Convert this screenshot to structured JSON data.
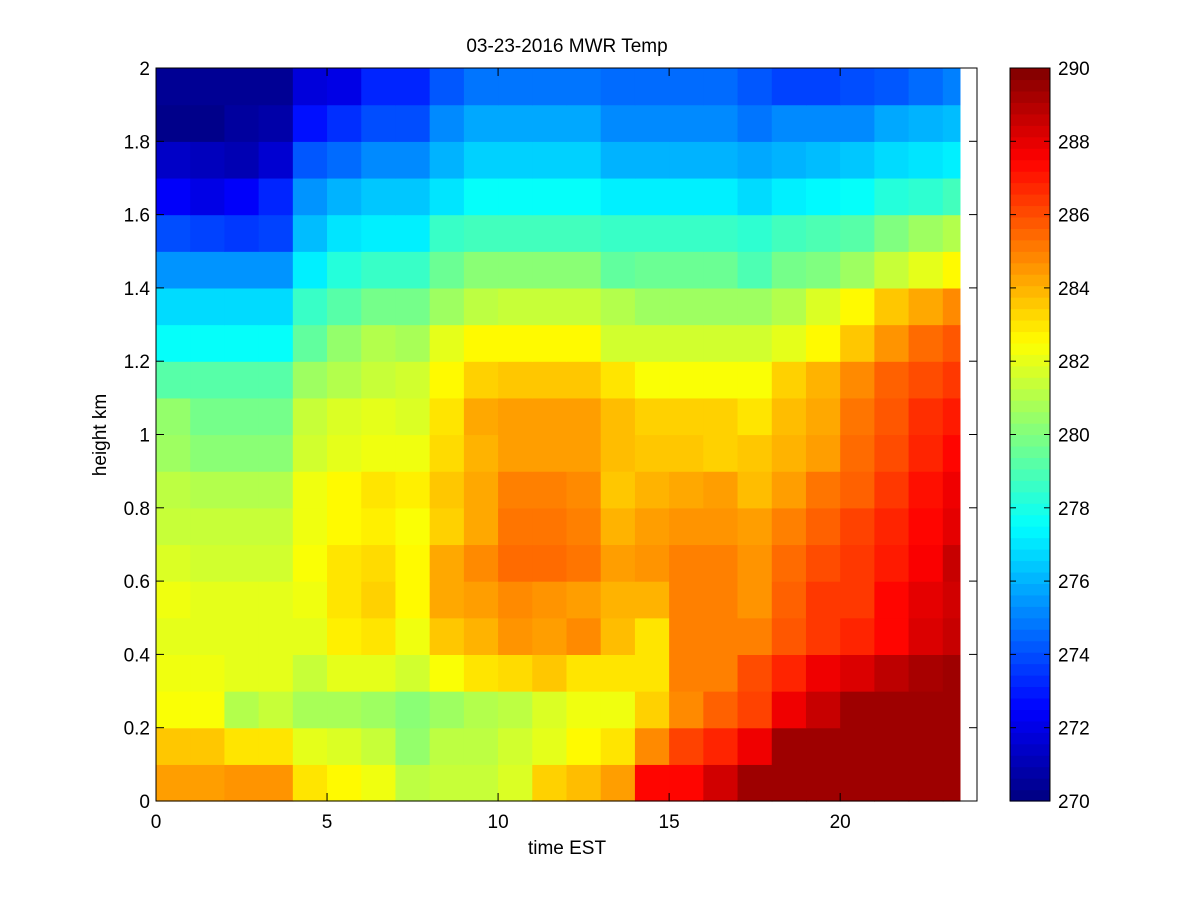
{
  "chart_data": {
    "type": "heatmap",
    "title": "03-23-2016 MWR Temp",
    "xlabel": "time EST",
    "ylabel": "height km",
    "xlim": [
      0,
      24
    ],
    "ylim": [
      0,
      2
    ],
    "x_ticks": [
      "0",
      "5",
      "10",
      "15",
      "20"
    ],
    "y_ticks": [
      "0",
      "0.2",
      "0.4",
      "0.6",
      "0.8",
      "1",
      "1.2",
      "1.4",
      "1.6",
      "1.8",
      "2"
    ],
    "colorbar": {
      "clim": [
        270,
        290
      ],
      "ticks": [
        "270",
        "272",
        "274",
        "276",
        "278",
        "280",
        "282",
        "284",
        "286",
        "288",
        "290"
      ],
      "colormap": "jet"
    },
    "x": [
      0,
      1,
      2,
      3,
      4,
      5,
      6,
      7,
      8,
      9,
      10,
      11,
      12,
      13,
      14,
      15,
      16,
      17,
      18,
      19,
      20,
      21,
      22,
      23
    ],
    "heights": [
      0,
      0.1,
      0.2,
      0.3,
      0.4,
      0.5,
      0.6,
      0.7,
      0.8,
      0.9,
      1.0,
      1.1,
      1.2,
      1.3,
      1.4,
      1.5,
      1.6,
      1.7,
      1.8,
      1.9,
      2.0
    ],
    "values": [
      [
        284.4,
        284.4,
        284.6,
        284.6,
        283,
        282.6,
        282.2,
        281.2,
        281.4,
        281.4,
        281.8,
        283.4,
        283.8,
        284.4,
        287.4,
        287.4,
        288.4,
        289.4,
        289.4,
        289.4,
        289.4,
        289.4,
        289.4,
        289.4
      ],
      [
        283.6,
        283.6,
        283,
        283,
        282,
        281.8,
        281.4,
        280.4,
        281.2,
        281.2,
        281.6,
        282,
        282.6,
        283,
        284.8,
        286.2,
        286.8,
        287.8,
        289.4,
        289.4,
        289.4,
        289.4,
        289.4,
        289.4
      ],
      [
        282.4,
        282.4,
        281,
        281.4,
        280.8,
        280.8,
        280.6,
        280.2,
        280.6,
        281,
        281.2,
        281.8,
        282.2,
        282.2,
        283.4,
        284.8,
        285.6,
        286.2,
        287.8,
        288.6,
        289.4,
        289.4,
        289.4,
        289.4
      ],
      [
        282.2,
        282.2,
        282,
        282,
        281.4,
        282,
        282,
        281.6,
        282.4,
        283,
        283.2,
        283.6,
        283,
        283,
        283,
        285,
        285,
        286,
        286.8,
        287.8,
        288.2,
        288.8,
        289.2,
        289.4
      ],
      [
        282,
        282,
        282,
        282,
        282,
        282.8,
        283,
        282.2,
        283.6,
        284,
        284.6,
        284.4,
        284.8,
        283.8,
        283,
        285,
        285,
        285,
        285.8,
        286.4,
        286.8,
        287.4,
        288.2,
        288.6
      ],
      [
        282.2,
        282,
        282,
        282,
        282.2,
        283,
        283.4,
        282.6,
        284.2,
        284.4,
        284.8,
        284.6,
        284.4,
        284,
        284,
        285,
        285,
        284.6,
        285.6,
        286.4,
        286.4,
        287.4,
        288,
        288.4
      ],
      [
        281.8,
        281.6,
        281.6,
        281.6,
        282.4,
        283,
        283.2,
        282.6,
        284.2,
        284.8,
        285.4,
        285.4,
        285.2,
        284.4,
        284.6,
        285,
        285,
        284.6,
        285.4,
        286,
        286.4,
        287,
        287.6,
        288.6
      ],
      [
        281.4,
        281.4,
        281.4,
        281.4,
        282.2,
        282.6,
        282.8,
        282.4,
        283.4,
        284.2,
        285.2,
        285.2,
        285,
        284,
        284.4,
        284.6,
        284.6,
        284.4,
        285,
        285.6,
        286.2,
        286.8,
        287.4,
        288
      ],
      [
        281.2,
        281,
        281,
        281,
        282.2,
        282.6,
        283,
        282.8,
        283.6,
        284.2,
        285,
        285,
        284.8,
        283.6,
        284,
        284.2,
        284.4,
        283.8,
        284.4,
        285.2,
        285.6,
        286.4,
        287.2,
        287.8
      ],
      [
        280.6,
        280.2,
        280.2,
        280.2,
        281.6,
        282,
        282.2,
        282.2,
        283.2,
        284,
        284.4,
        284.4,
        284.4,
        283.8,
        283.6,
        283.6,
        283.4,
        283.6,
        284,
        284.4,
        285.4,
        286,
        286.8,
        287.4
      ],
      [
        280.4,
        279.8,
        279.8,
        279.8,
        281.4,
        281.8,
        282,
        281.8,
        283,
        284.2,
        284.4,
        284.4,
        284.4,
        283.8,
        283.4,
        283.4,
        283.4,
        283,
        283.8,
        284.2,
        285.2,
        285.8,
        286.6,
        287
      ],
      [
        279.2,
        279.2,
        279.2,
        279.2,
        280.6,
        281,
        281.4,
        281.6,
        282.6,
        283.4,
        283.6,
        283.6,
        283.6,
        283,
        282.4,
        282.4,
        282.4,
        282.4,
        283.4,
        284,
        284.8,
        285.6,
        286,
        286.4
      ],
      [
        277.6,
        277.6,
        277.6,
        277.6,
        279.4,
        280.4,
        281,
        280.8,
        282,
        282.6,
        282.6,
        282.6,
        282.6,
        281.6,
        281.6,
        281.6,
        281.6,
        281.6,
        282,
        282.6,
        283.6,
        284.6,
        285.4,
        285.8
      ],
      [
        276.8,
        276.8,
        276.8,
        276.8,
        278.6,
        279.2,
        279.8,
        279.8,
        280.6,
        281.2,
        281.4,
        281.4,
        281.4,
        281,
        280.6,
        280.6,
        280.6,
        280.6,
        281,
        281.8,
        282.6,
        283.6,
        284.2,
        284.8
      ],
      [
        275.4,
        275.4,
        275.4,
        275.4,
        277.2,
        278.2,
        278.6,
        278.6,
        279.6,
        280.2,
        280.2,
        280.2,
        280.2,
        279.4,
        279.6,
        279.6,
        279.6,
        279,
        279.8,
        280,
        280.6,
        281.4,
        282,
        282.6
      ],
      [
        274,
        273.8,
        273.6,
        273.8,
        276.2,
        277,
        277.2,
        277.2,
        278.6,
        278.8,
        278.8,
        278.8,
        278.8,
        278.6,
        278.6,
        278.6,
        278.6,
        278.4,
        278.8,
        279,
        279.2,
        280,
        280.6,
        281
      ],
      [
        272.4,
        272,
        272.4,
        273.2,
        275.4,
        276,
        276.4,
        276.4,
        277,
        277.6,
        277.6,
        277.6,
        277.6,
        277.2,
        277.2,
        277.2,
        277.2,
        276.8,
        277.2,
        277.4,
        277.6,
        278.2,
        278.4,
        278.8
      ],
      [
        271.4,
        271.2,
        271,
        271.6,
        274.2,
        274.6,
        275.2,
        275.2,
        276,
        276.6,
        276.6,
        276.6,
        276.6,
        276,
        276,
        276,
        276,
        275.8,
        276,
        276.2,
        276.4,
        276.8,
        277,
        277.2
      ],
      [
        270.2,
        270.2,
        270.6,
        270.8,
        272.8,
        273.4,
        274,
        274,
        275.2,
        275.8,
        275.8,
        275.8,
        275.8,
        275.2,
        275.2,
        275.2,
        275.2,
        274.8,
        275.2,
        275.2,
        275.2,
        275.8,
        276,
        276.2
      ],
      [
        270.4,
        270.4,
        270.4,
        270.4,
        271.8,
        272,
        273.2,
        273.2,
        274.2,
        274.8,
        274.8,
        274.8,
        274.8,
        274.6,
        274.6,
        274.6,
        274.6,
        274.2,
        273.8,
        273.8,
        274,
        274.2,
        274.6,
        275
      ]
    ]
  }
}
